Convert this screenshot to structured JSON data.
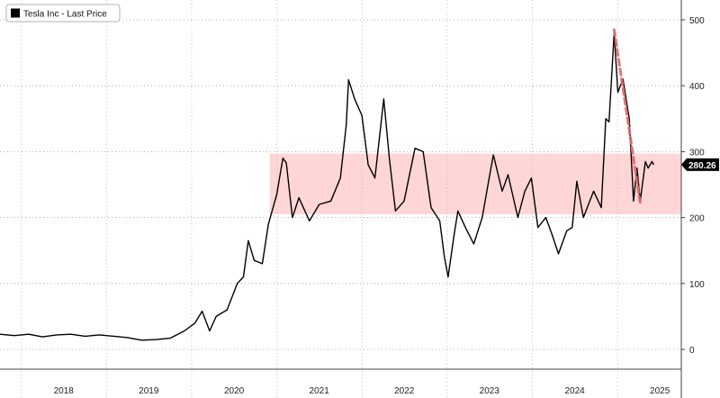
{
  "chart_data": {
    "type": "line",
    "title": "",
    "xlabel": "",
    "ylabel": "",
    "ylim": [
      -30,
      530
    ],
    "xlim": [
      "2017-10-01",
      "2025-10-01"
    ],
    "y_ticks": [
      0,
      100,
      200,
      300,
      400,
      500
    ],
    "x_tick_labels": [
      "2018",
      "2019",
      "2020",
      "2021",
      "2022",
      "2023",
      "2024",
      "2025"
    ],
    "x_tick_dates": [
      "2018-07-01",
      "2019-07-01",
      "2020-07-01",
      "2021-07-01",
      "2022-07-01",
      "2023-07-01",
      "2024-07-01",
      "2025-07-01"
    ],
    "x_year_boundaries": [
      "2018-01-01",
      "2019-01-01",
      "2020-01-01",
      "2021-01-01",
      "2022-01-01",
      "2023-01-01",
      "2024-01-01",
      "2025-01-01"
    ],
    "grid": "y-dotted",
    "legend_position": "top-left",
    "series": [
      {
        "name": "Tesla Inc - Last Price",
        "color": "#000000",
        "points": [
          [
            "2017-10-01",
            23
          ],
          [
            "2017-12-01",
            21
          ],
          [
            "2018-02-01",
            23
          ],
          [
            "2018-04-01",
            19
          ],
          [
            "2018-06-01",
            22
          ],
          [
            "2018-08-01",
            23
          ],
          [
            "2018-10-01",
            20
          ],
          [
            "2018-12-01",
            22
          ],
          [
            "2019-02-01",
            20
          ],
          [
            "2019-04-01",
            18
          ],
          [
            "2019-06-01",
            14
          ],
          [
            "2019-08-01",
            15
          ],
          [
            "2019-10-01",
            17
          ],
          [
            "2019-12-01",
            28
          ],
          [
            "2020-01-15",
            40
          ],
          [
            "2020-02-15",
            58
          ],
          [
            "2020-03-18",
            28
          ],
          [
            "2020-04-15",
            50
          ],
          [
            "2020-06-01",
            60
          ],
          [
            "2020-07-15",
            100
          ],
          [
            "2020-08-10",
            110
          ],
          [
            "2020-08-31",
            165
          ],
          [
            "2020-09-25",
            135
          ],
          [
            "2020-10-30",
            130
          ],
          [
            "2020-11-25",
            190
          ],
          [
            "2020-12-31",
            235
          ],
          [
            "2021-01-26",
            290
          ],
          [
            "2021-02-10",
            283
          ],
          [
            "2021-03-08",
            200
          ],
          [
            "2021-04-05",
            230
          ],
          [
            "2021-05-20",
            195
          ],
          [
            "2021-07-01",
            220
          ],
          [
            "2021-08-20",
            225
          ],
          [
            "2021-09-30",
            260
          ],
          [
            "2021-10-25",
            340
          ],
          [
            "2021-11-04",
            409
          ],
          [
            "2021-11-30",
            380
          ],
          [
            "2021-12-31",
            355
          ],
          [
            "2022-01-27",
            280
          ],
          [
            "2022-02-25",
            260
          ],
          [
            "2022-04-04",
            380
          ],
          [
            "2022-04-28",
            290
          ],
          [
            "2022-05-24",
            210
          ],
          [
            "2022-06-30",
            225
          ],
          [
            "2022-08-16",
            305
          ],
          [
            "2022-09-20",
            300
          ],
          [
            "2022-10-24",
            215
          ],
          [
            "2022-11-30",
            195
          ],
          [
            "2022-12-20",
            140
          ],
          [
            "2023-01-05",
            110
          ],
          [
            "2023-01-31",
            175
          ],
          [
            "2023-02-16",
            210
          ],
          [
            "2023-03-20",
            185
          ],
          [
            "2023-04-25",
            160
          ],
          [
            "2023-05-31",
            200
          ],
          [
            "2023-06-30",
            260
          ],
          [
            "2023-07-18",
            295
          ],
          [
            "2023-08-25",
            240
          ],
          [
            "2023-09-19",
            265
          ],
          [
            "2023-10-31",
            200
          ],
          [
            "2023-11-30",
            240
          ],
          [
            "2023-12-28",
            260
          ],
          [
            "2024-01-25",
            185
          ],
          [
            "2024-02-28",
            200
          ],
          [
            "2024-03-25",
            175
          ],
          [
            "2024-04-22",
            145
          ],
          [
            "2024-05-28",
            180
          ],
          [
            "2024-06-20",
            185
          ],
          [
            "2024-07-10",
            255
          ],
          [
            "2024-08-07",
            200
          ],
          [
            "2024-09-20",
            240
          ],
          [
            "2024-10-23",
            215
          ],
          [
            "2024-11-11",
            350
          ],
          [
            "2024-11-25",
            345
          ],
          [
            "2024-12-17",
            480
          ],
          [
            "2025-01-02",
            390
          ],
          [
            "2025-01-24",
            410
          ],
          [
            "2025-02-20",
            350
          ],
          [
            "2025-03-10",
            225
          ],
          [
            "2025-03-25",
            275
          ],
          [
            "2025-04-08",
            225
          ],
          [
            "2025-04-30",
            285
          ],
          [
            "2025-05-12",
            275
          ],
          [
            "2025-05-28",
            285
          ],
          [
            "2025-06-05",
            280
          ]
        ]
      }
    ],
    "band": {
      "color": "#ffd6d6",
      "y0": 205,
      "y1": 297,
      "x0": "2020-12-01",
      "x1": "2025-10-01"
    },
    "trendline": {
      "color": "#e06666",
      "style": "dashed",
      "x0": "2024-12-17",
      "y0": 485,
      "x1": "2025-04-08",
      "y1": 222
    },
    "last_value": {
      "value": 280.26,
      "label": "280.26",
      "color": "#000000"
    }
  }
}
